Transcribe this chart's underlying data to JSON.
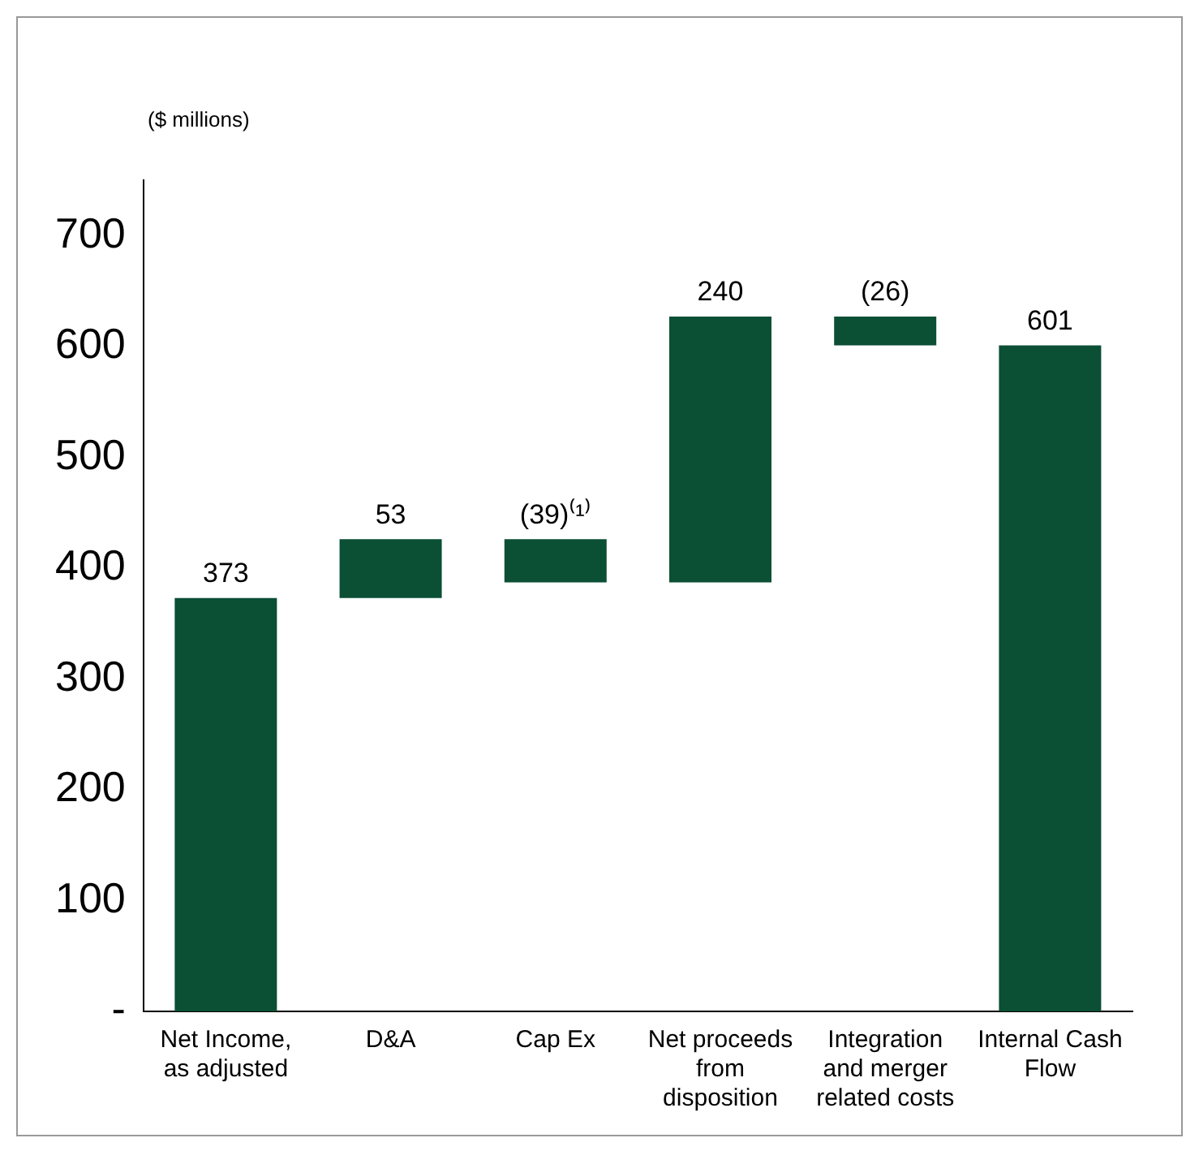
{
  "chart_data": {
    "type": "bar",
    "ylabel": "($ millions)",
    "categories": [
      "Net Income, as adjusted",
      "D&A",
      "Cap Ex",
      "Net proceeds from disposition",
      "Integration and merger related costs",
      "Internal Cash Flow"
    ],
    "values": [
      373,
      53,
      -39,
      240,
      -26,
      601
    ],
    "base": [
      0,
      373,
      426,
      387,
      627,
      0
    ],
    "color": "#0b4f35",
    "value_labels": [
      "373",
      "53",
      "(39)⁽¹⁾",
      "240",
      "(26)",
      "601"
    ],
    "ylim": [
      0,
      750
    ],
    "yticks": [
      {
        "value": 0,
        "label": "-"
      },
      100,
      200,
      300,
      400,
      500,
      600,
      700
    ],
    "grid": false,
    "legend": false
  }
}
